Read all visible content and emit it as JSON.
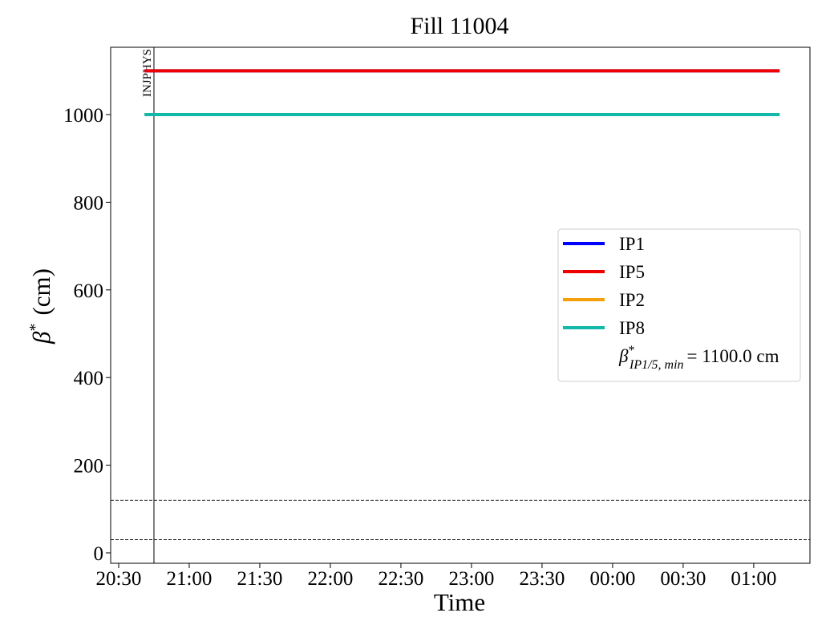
{
  "chart_data": {
    "type": "line",
    "title": "Fill 11004",
    "xlabel": "Time",
    "ylabel": {
      "symbol": "β",
      "sup": "*",
      "unit": "(cm)"
    },
    "x": [
      1241,
      1511
    ],
    "series": [
      {
        "name": "IP1",
        "color": "#0000ff",
        "values": [
          1100,
          1100
        ]
      },
      {
        "name": "IP5",
        "color": "#ee0000",
        "values": [
          1100,
          1100
        ]
      },
      {
        "name": "IP2",
        "color": "#f5a00a",
        "values": [
          1000,
          1000
        ]
      },
      {
        "name": "IP8",
        "color": "#12b8a8",
        "values": [
          1000,
          1000
        ]
      }
    ],
    "legend_note": {
      "symbol": "β",
      "sup": "*",
      "sub": "IP1/5, min",
      "text": "= 1100.0 cm"
    },
    "legend_loc": "center right",
    "vlines": [
      {
        "x": 1245,
        "label": "INJPHYS"
      }
    ],
    "hlines": [
      120,
      30
    ],
    "xlim": [
      1226.6,
      1523.9
    ],
    "xticks": [
      {
        "value": 1230,
        "label": "20:30"
      },
      {
        "value": 1260,
        "label": "21:00"
      },
      {
        "value": 1290,
        "label": "21:30"
      },
      {
        "value": 1320,
        "label": "22:00"
      },
      {
        "value": 1350,
        "label": "22:30"
      },
      {
        "value": 1380,
        "label": "23:00"
      },
      {
        "value": 1410,
        "label": "23:30"
      },
      {
        "value": 1440,
        "label": "00:00"
      },
      {
        "value": 1470,
        "label": "00:30"
      },
      {
        "value": 1500,
        "label": "01:00"
      }
    ],
    "ylim": [
      -23.8,
      1153.6
    ],
    "yticks": [
      0,
      200,
      400,
      600,
      800,
      1000
    ],
    "grid": false
  }
}
